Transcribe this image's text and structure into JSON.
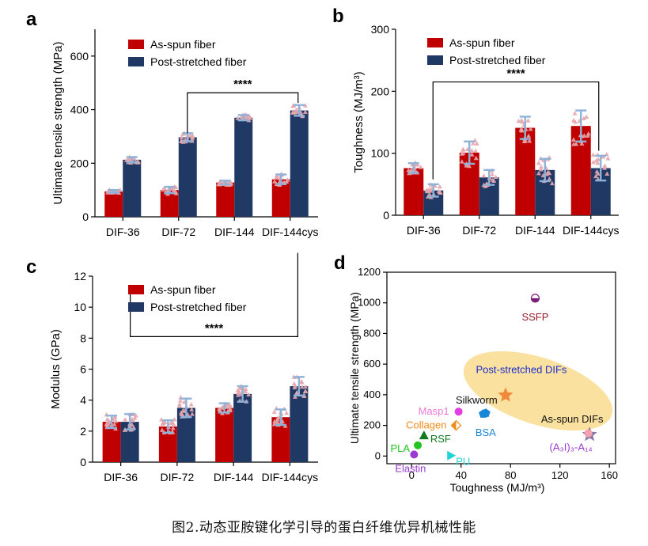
{
  "caption": "图2.动态亚胺键化学引导的蛋白纤维优异机械性能",
  "colors": {
    "as_spun": "#c00000",
    "post_stretched": "#1f3864",
    "dots": "#e6a6ae",
    "error": "#8fb2d8",
    "region": "#f9dc8e"
  },
  "chart_data": [
    {
      "panel": "a",
      "type": "bar",
      "ylabel": "Ultimate tensile strength (MPa)",
      "xlabel": "",
      "ylim": [
        0,
        700
      ],
      "yticks": [
        0,
        200,
        400,
        600
      ],
      "categories": [
        "DIF-36",
        "DIF-72",
        "DIF-144",
        "DIF-144cys"
      ],
      "series": [
        {
          "name": "As-spun fiber",
          "values": [
            95,
            100,
            128,
            140
          ],
          "errors": [
            5,
            12,
            7,
            18
          ]
        },
        {
          "name": "Post-stretched fiber",
          "values": [
            213,
            297,
            370,
            397
          ],
          "errors": [
            10,
            15,
            10,
            20
          ]
        }
      ],
      "significance": {
        "label": "****",
        "from": 1,
        "to": 3,
        "level": 463
      }
    },
    {
      "panel": "b",
      "type": "bar",
      "ylabel": "Toughness (MJ/m³)",
      "xlabel": "",
      "ylim": [
        0,
        300
      ],
      "yticks": [
        0,
        100,
        200,
        300
      ],
      "categories": [
        "DIF-36",
        "DIF-72",
        "DIF-144",
        "DIF-144cys"
      ],
      "series": [
        {
          "name": "As-spun fiber",
          "values": [
            76,
            101,
            141,
            144
          ],
          "errors": [
            8,
            18,
            18,
            25
          ]
        },
        {
          "name": "Post-stretched fiber",
          "values": [
            40,
            61,
            73,
            76
          ],
          "errors": [
            10,
            12,
            18,
            20
          ]
        }
      ],
      "significance": {
        "label": "****",
        "from": 0,
        "to": 3,
        "level": 215
      }
    },
    {
      "panel": "c",
      "type": "bar",
      "ylabel": "Modulus (GPa)",
      "xlabel": "",
      "ylim": [
        0,
        12
      ],
      "yticks": [
        0,
        2,
        4,
        6,
        8,
        10,
        12
      ],
      "categories": [
        "DIF-36",
        "DIF-72",
        "DIF-144",
        "DIF-144cys"
      ],
      "series": [
        {
          "name": "As-spun fiber",
          "values": [
            2.6,
            2.3,
            3.5,
            2.9
          ],
          "errors": [
            0.4,
            0.4,
            0.3,
            0.5
          ]
        },
        {
          "name": "Post-stretched fiber",
          "values": [
            2.6,
            3.5,
            4.4,
            4.9
          ],
          "errors": [
            0.5,
            0.6,
            0.5,
            0.6
          ]
        }
      ],
      "significance": {
        "label": "****",
        "from": 0,
        "to": 3,
        "level": 8.1
      }
    },
    {
      "panel": "d",
      "type": "scatter",
      "xlabel": "Toughness (MJ/m³)",
      "ylabel": "Ultimate tensile strength (MPa)",
      "xlim": [
        -20,
        165
      ],
      "ylim": [
        -50,
        1200
      ],
      "xticks": [
        0,
        40,
        80,
        120,
        160
      ],
      "yticks": [
        0,
        200,
        400,
        600,
        800,
        1000,
        1200
      ],
      "points": [
        {
          "label": "SSFP",
          "x": 100,
          "y": 1030,
          "marker": "half-circle",
          "color": "#7b1f7b",
          "label_color": "#9a1c2a"
        },
        {
          "label": "Post-stretched DIFs",
          "x": 76,
          "y": 397,
          "marker": "star",
          "color": "#f08a3a",
          "label_color": "#1a2ccf"
        },
        {
          "label": "As-spun DIFs",
          "x": 144,
          "y": 140,
          "marker": "star",
          "color": "#8a7aa8",
          "label_color": "#111111"
        },
        {
          "label": "Masp1",
          "x": 38,
          "y": 290,
          "marker": "circle",
          "color": "#e33ee3",
          "label_color": "#f07ad9"
        },
        {
          "label": "Silkworm",
          "x": 60,
          "y": 280,
          "marker": "pentagon",
          "color": "#1a86d6",
          "label_color": "#111111"
        },
        {
          "label": "Collagen",
          "x": 36,
          "y": 200,
          "marker": "diamond",
          "color": "#f08a1a",
          "label_color": "#f08a1a"
        },
        {
          "label": "BSA",
          "x": 58,
          "y": 275,
          "marker": "pentagon",
          "color": "#1a86d6",
          "label_color": "#1a86d6"
        },
        {
          "label": "RSF",
          "x": 10,
          "y": 135,
          "marker": "triangle",
          "color": "#107a20",
          "label_color": "#107a20"
        },
        {
          "label": "PLA",
          "x": 5,
          "y": 70,
          "marker": "circle",
          "color": "#22c322",
          "label_color": "#22c322"
        },
        {
          "label": "PU",
          "x": 32,
          "y": 3,
          "marker": "triangle-right",
          "color": "#1fd3d6",
          "label_color": "#1fd3d6"
        },
        {
          "label": "Elastin",
          "x": 2,
          "y": 10,
          "marker": "circle",
          "color": "#9b3ad1",
          "label_color": "#9b3ad1"
        },
        {
          "label": "(A₃I)₃-A₁₄",
          "x": 143,
          "y": 148,
          "marker": "circle",
          "color": "#f2a0b0",
          "label_color": "#9b3ad1"
        }
      ]
    }
  ]
}
